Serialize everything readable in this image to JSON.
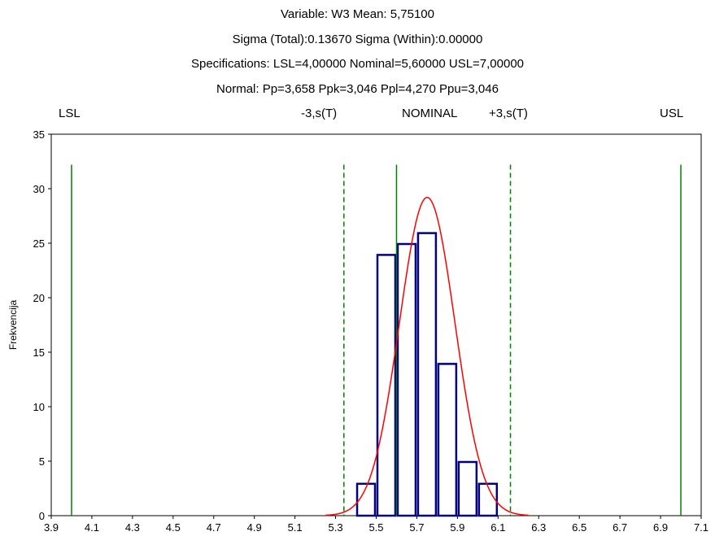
{
  "title_lines": [
    "Variable: W3   Mean: 5,75100",
    "Sigma (Total):0.13670 Sigma (Within):0.00000",
    "Specifications: LSL=4,00000 Nominal=5,60000 USL=7,00000",
    "Normal: Pp=3,658 Ppk=3,046 Ppl=4,270 Ppu=3,046"
  ],
  "ref_labels": {
    "lsl": "LSL",
    "minus3s": "-3,s(T)",
    "nominal": "NOMINAL",
    "plus3s": "+3,s(T)",
    "usl": "USL"
  },
  "colors": {
    "bar_stroke": "#000080",
    "bar_fill": "#ffffff",
    "curve": "#ff0000",
    "spec_lines": "#008000"
  },
  "chart_data": {
    "type": "bar",
    "subtype": "histogram-with-normal-curve",
    "ylabel": "Frekvencija",
    "xlim": [
      3.9,
      7.1
    ],
    "ylim": [
      0,
      35
    ],
    "x_ticks": [
      "3.9",
      "4.1",
      "4.3",
      "4.5",
      "4.7",
      "4.9",
      "5.1",
      "5.3",
      "5.5",
      "5.7",
      "5.9",
      "6.1",
      "6.3",
      "6.5",
      "6.7",
      "6.9",
      "7.1"
    ],
    "y_ticks": [
      "0",
      "5",
      "10",
      "15",
      "20",
      "25",
      "30",
      "35"
    ],
    "bins": [
      {
        "from": 5.4,
        "to": 5.5,
        "count": 3
      },
      {
        "from": 5.5,
        "to": 5.6,
        "count": 24
      },
      {
        "from": 5.6,
        "to": 5.7,
        "count": 25
      },
      {
        "from": 5.7,
        "to": 5.8,
        "count": 26
      },
      {
        "from": 5.8,
        "to": 5.9,
        "count": 14
      },
      {
        "from": 5.9,
        "to": 6.0,
        "count": 5
      },
      {
        "from": 6.0,
        "to": 6.1,
        "count": 3
      }
    ],
    "normal_curve": {
      "mean": 5.751,
      "sigma": 0.1367,
      "peak": 29.2
    },
    "reference_lines": [
      {
        "name": "LSL",
        "x": 4.0,
        "style": "solid"
      },
      {
        "name": "-3,s(T)",
        "x": 5.341,
        "style": "dashed"
      },
      {
        "name": "NOMINAL",
        "x": 5.6,
        "style": "solid"
      },
      {
        "name": "+3,s(T)",
        "x": 6.161,
        "style": "dashed"
      },
      {
        "name": "USL",
        "x": 7.0,
        "style": "solid"
      }
    ]
  }
}
